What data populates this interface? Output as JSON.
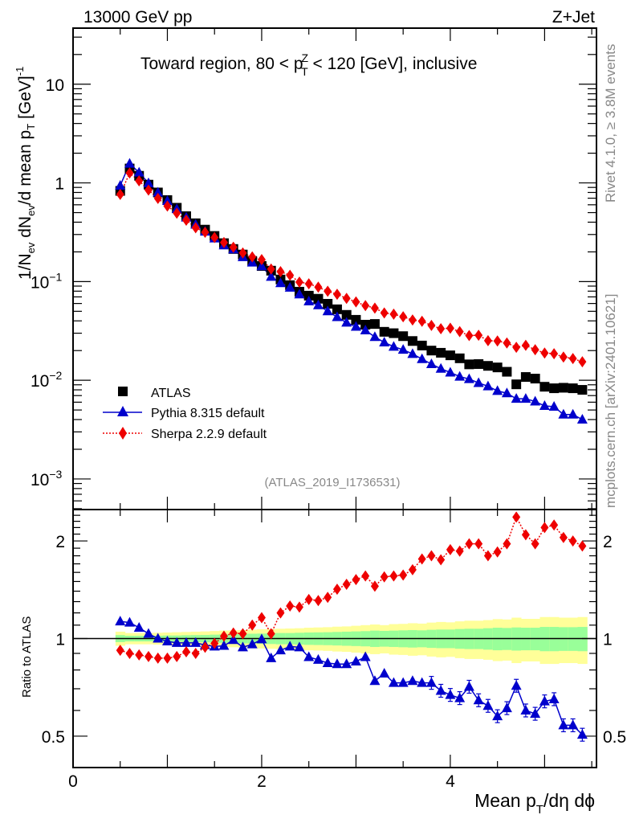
{
  "header": {
    "left": "13000 GeV pp",
    "right": "Z+Jet",
    "side_top": "Rivet 4.1.0, ≥ 3.8M events",
    "side_bottom": "mcplots.cern.ch [arXiv:2401.10621]",
    "analysis_id": "(ATLAS_2019_I1736531)"
  },
  "chart_data": [
    {
      "type": "scatter",
      "panel": "main",
      "title_parts": {
        "prefix": "Toward region, 80 < p",
        "sup": "Z",
        "sub": "T",
        "suffix": " < 120 [GeV], inclusive"
      },
      "ylabel": "1/N_ev dN_ev/d mean p_T [GeV]^-1",
      "ylabel_parts": {
        "a": "1/N",
        "a_sub": "ev",
        "b": " dN",
        "b_sub": "ev",
        "c": "/d mean p",
        "c_sub": "T",
        "d": "  [GeV]",
        "d_sup": "-1"
      },
      "yscale": "log",
      "ylim": [
        0.00049,
        37
      ],
      "xlim": [
        0,
        5.55
      ],
      "ytick_labels": [
        {
          "value": 10,
          "label": "10",
          "exp": ""
        },
        {
          "value": 1,
          "label": "1",
          "exp": ""
        },
        {
          "value": 0.1,
          "label": "10",
          "exp": "−1"
        },
        {
          "value": 0.01,
          "label": "10",
          "exp": "−2"
        },
        {
          "value": 0.001,
          "label": "10",
          "exp": "−3"
        }
      ],
      "legend": {
        "placement": "lower-left",
        "entries": [
          {
            "name": "ATLAS",
            "marker": "square",
            "color": "#000000"
          },
          {
            "name": "Pythia 8.315 default",
            "marker": "triangle",
            "color": "#0000cc",
            "line": "solid"
          },
          {
            "name": "Sherpa 2.2.9 default",
            "marker": "diamond",
            "color": "#ee0000",
            "line": "dotted"
          }
        ]
      },
      "x": [
        0.5,
        0.6,
        0.7,
        0.8,
        0.9,
        1.0,
        1.1,
        1.2,
        1.3,
        1.4,
        1.5,
        1.6,
        1.7,
        1.8,
        1.9,
        2.0,
        2.1,
        2.2,
        2.3,
        2.4,
        2.5,
        2.6,
        2.7,
        2.8,
        2.9,
        3.0,
        3.1,
        3.2,
        3.3,
        3.4,
        3.5,
        3.6,
        3.7,
        3.8,
        3.9,
        4.0,
        4.1,
        4.2,
        4.3,
        4.4,
        4.5,
        4.6,
        4.7,
        4.8,
        4.9,
        5.0,
        5.1,
        5.2,
        5.3,
        5.4
      ],
      "series": [
        {
          "name": "ATLAS",
          "values": [
            0.83,
            1.4,
            1.18,
            0.96,
            0.8,
            0.67,
            0.56,
            0.46,
            0.39,
            0.336,
            0.29,
            0.245,
            0.214,
            0.188,
            0.162,
            0.144,
            0.129,
            0.105,
            0.092,
            0.079,
            0.072,
            0.067,
            0.0596,
            0.0524,
            0.046,
            0.041,
            0.0366,
            0.0372,
            0.031,
            0.03,
            0.028,
            0.025,
            0.0225,
            0.02,
            0.019,
            0.0179,
            0.0167,
            0.0145,
            0.0146,
            0.014,
            0.0135,
            0.0122,
            0.0091,
            0.0108,
            0.0104,
            0.0086,
            0.0083,
            0.0084,
            0.0083,
            0.008
          ]
        },
        {
          "name": "Pythia 8.315 default",
          "values": [
            0.938,
            1.568,
            1.274,
            0.994,
            0.8,
            0.657,
            0.543,
            0.446,
            0.378,
            0.321,
            0.274,
            0.233,
            0.212,
            0.177,
            0.156,
            0.143,
            0.112,
            0.0966,
            0.0869,
            0.0743,
            0.0631,
            0.0576,
            0.0501,
            0.0437,
            0.0384,
            0.0349,
            0.0321,
            0.0275,
            0.0242,
            0.0219,
            0.0204,
            0.0185,
            0.0164,
            0.0146,
            0.0131,
            0.012,
            0.0109,
            0.0103,
            0.0094,
            0.0087,
            0.0078,
            0.0074,
            0.0065,
            0.0065,
            0.0061,
            0.0055,
            0.0054,
            0.0045,
            0.0045,
            0.004
          ]
        },
        {
          "name": "Sherpa 2.2.9 default",
          "values": [
            0.764,
            1.26,
            1.05,
            0.845,
            0.696,
            0.583,
            0.493,
            0.419,
            0.351,
            0.316,
            0.28,
            0.249,
            0.223,
            0.195,
            0.178,
            0.167,
            0.134,
            0.126,
            0.116,
            0.0988,
            0.095,
            0.0878,
            0.0799,
            0.0744,
            0.0676,
            0.0623,
            0.0571,
            0.0539,
            0.0481,
            0.0468,
            0.044,
            0.0408,
            0.0396,
            0.036,
            0.0333,
            0.0337,
            0.0311,
            0.0284,
            0.0286,
            0.0252,
            0.025,
            0.0239,
            0.0216,
            0.0226,
            0.0204,
            0.0189,
            0.0186,
            0.0172,
            0.0166,
            0.0154
          ]
        }
      ]
    },
    {
      "type": "line",
      "panel": "ratio",
      "ylabel": "Ratio to ATLAS",
      "xlabel_parts": {
        "a": "Mean p",
        "a_sub": "T",
        "b": "/dη dϕ"
      },
      "yscale": "log",
      "ylim": [
        0.4,
        2.5
      ],
      "xlim": [
        0,
        5.55
      ],
      "xtick_labels": [
        {
          "value": 0,
          "label": "0"
        },
        {
          "value": 2,
          "label": "2"
        },
        {
          "value": 4,
          "label": "4"
        }
      ],
      "ytick_labels": [
        {
          "value": 0.5,
          "label": "0.5"
        },
        {
          "value": 1,
          "label": "1"
        },
        {
          "value": 2,
          "label": "2"
        }
      ],
      "reference_line": 1,
      "band_colors": {
        "inner": "#99ff99",
        "outer": "#ffff99"
      },
      "x": [
        0.5,
        0.6,
        0.7,
        0.8,
        0.9,
        1.0,
        1.1,
        1.2,
        1.3,
        1.4,
        1.5,
        1.6,
        1.7,
        1.8,
        1.9,
        2.0,
        2.1,
        2.2,
        2.3,
        2.4,
        2.5,
        2.6,
        2.7,
        2.8,
        2.9,
        3.0,
        3.1,
        3.2,
        3.3,
        3.4,
        3.5,
        3.6,
        3.7,
        3.8,
        3.9,
        4.0,
        4.1,
        4.2,
        4.3,
        4.4,
        4.5,
        4.6,
        4.7,
        4.8,
        4.9,
        5.0,
        5.1,
        5.2,
        5.3,
        5.4
      ],
      "band_inner_halfwidth": [
        0.025,
        0.02,
        0.02,
        0.02,
        0.02,
        0.022,
        0.022,
        0.024,
        0.025,
        0.026,
        0.028,
        0.03,
        0.032,
        0.034,
        0.035,
        0.036,
        0.038,
        0.04,
        0.04,
        0.042,
        0.044,
        0.045,
        0.046,
        0.048,
        0.05,
        0.052,
        0.054,
        0.058,
        0.056,
        0.058,
        0.06,
        0.062,
        0.06,
        0.064,
        0.066,
        0.066,
        0.07,
        0.072,
        0.072,
        0.076,
        0.08,
        0.078,
        0.082,
        0.08,
        0.08,
        0.086,
        0.086,
        0.084,
        0.084,
        0.086
      ],
      "band_outer_halfwidth": [
        0.05,
        0.04,
        0.04,
        0.04,
        0.042,
        0.044,
        0.046,
        0.048,
        0.05,
        0.052,
        0.055,
        0.058,
        0.06,
        0.062,
        0.065,
        0.068,
        0.07,
        0.072,
        0.074,
        0.076,
        0.08,
        0.082,
        0.084,
        0.088,
        0.09,
        0.095,
        0.1,
        0.105,
        0.1,
        0.108,
        0.11,
        0.115,
        0.112,
        0.12,
        0.125,
        0.122,
        0.13,
        0.135,
        0.135,
        0.14,
        0.148,
        0.145,
        0.16,
        0.15,
        0.15,
        0.165,
        0.165,
        0.16,
        0.16,
        0.165
      ],
      "series": [
        {
          "name": "Pythia 8.315 default",
          "values": [
            1.13,
            1.12,
            1.08,
            1.035,
            1.0,
            0.98,
            0.97,
            0.97,
            0.97,
            0.955,
            0.945,
            0.95,
            0.99,
            0.94,
            0.96,
            0.995,
            0.87,
            0.92,
            0.945,
            0.94,
            0.877,
            0.86,
            0.84,
            0.834,
            0.834,
            0.85,
            0.877,
            0.74,
            0.78,
            0.73,
            0.73,
            0.74,
            0.73,
            0.73,
            0.69,
            0.67,
            0.655,
            0.71,
            0.645,
            0.62,
            0.576,
            0.61,
            0.715,
            0.6,
            0.586,
            0.64,
            0.65,
            0.54,
            0.54,
            0.505
          ]
        },
        {
          "name": "Sherpa 2.2.9 default",
          "values": [
            0.92,
            0.9,
            0.89,
            0.88,
            0.87,
            0.87,
            0.88,
            0.91,
            0.9,
            0.94,
            0.966,
            1.017,
            1.04,
            1.035,
            1.1,
            1.16,
            1.035,
            1.2,
            1.26,
            1.25,
            1.32,
            1.31,
            1.34,
            1.42,
            1.47,
            1.52,
            1.56,
            1.45,
            1.55,
            1.56,
            1.57,
            1.63,
            1.76,
            1.8,
            1.75,
            1.88,
            1.86,
            1.96,
            1.96,
            1.8,
            1.85,
            1.96,
            2.37,
            2.09,
            1.96,
            2.2,
            2.24,
            2.05,
            2.0,
            1.93
          ]
        }
      ]
    }
  ]
}
